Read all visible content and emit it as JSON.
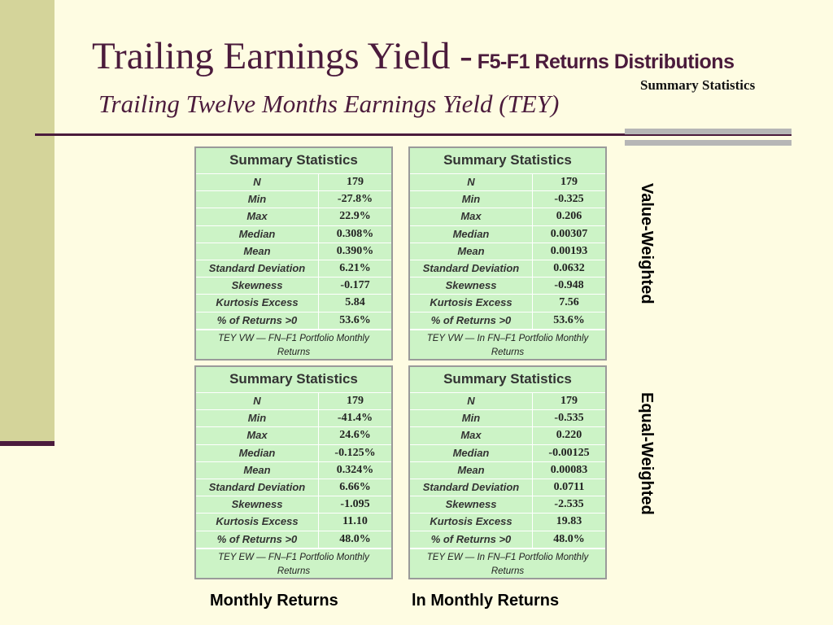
{
  "header": {
    "title_main": "Trailing Earnings Yield -",
    "title_sub": "F5-F1 Returns Distributions",
    "small_caption": "Summary Statistics",
    "subtitle": "Trailing Twelve Months Earnings Yield (TEY)"
  },
  "colors": {
    "background": "#fefce2",
    "accent": "#4b1b3c",
    "table_fill": "#ccf3c6",
    "left_bar": "#d4d49a"
  },
  "panels": {
    "vw_monthly": {
      "heading": "Summary Statistics",
      "rows": [
        {
          "label": "N",
          "value": "179"
        },
        {
          "label": "Min",
          "value": "-27.8%"
        },
        {
          "label": "Max",
          "value": "22.9%"
        },
        {
          "label": "Median",
          "value": "0.308%"
        },
        {
          "label": "Mean",
          "value": "0.390%"
        },
        {
          "label": "Standard Deviation",
          "value": "6.21%"
        },
        {
          "label": "Skewness",
          "value": "-0.177"
        },
        {
          "label": "Kurtosis Excess",
          "value": "5.84"
        },
        {
          "label": "% of Returns >0",
          "value": "53.6%"
        }
      ],
      "footer": "TEY VW — FN–F1 Portfolio Monthly Returns"
    },
    "vw_ln": {
      "heading": "Summary Statistics",
      "rows": [
        {
          "label": "N",
          "value": "179"
        },
        {
          "label": "Min",
          "value": "-0.325"
        },
        {
          "label": "Max",
          "value": "0.206"
        },
        {
          "label": "Median",
          "value": "0.00307"
        },
        {
          "label": "Mean",
          "value": "0.00193"
        },
        {
          "label": "Standard Deviation",
          "value": "0.0632"
        },
        {
          "label": "Skewness",
          "value": "-0.948"
        },
        {
          "label": "Kurtosis Excess",
          "value": "7.56"
        },
        {
          "label": "% of Returns >0",
          "value": "53.6%"
        }
      ],
      "footer": "TEY VW — In FN–F1 Portfolio Monthly Returns"
    },
    "ew_monthly": {
      "heading": "Summary Statistics",
      "rows": [
        {
          "label": "N",
          "value": "179"
        },
        {
          "label": "Min",
          "value": "-41.4%"
        },
        {
          "label": "Max",
          "value": "24.6%"
        },
        {
          "label": "Median",
          "value": "-0.125%"
        },
        {
          "label": "Mean",
          "value": "0.324%"
        },
        {
          "label": "Standard Deviation",
          "value": "6.66%"
        },
        {
          "label": "Skewness",
          "value": "-1.095"
        },
        {
          "label": "Kurtosis Excess",
          "value": "11.10"
        },
        {
          "label": "% of Returns >0",
          "value": "48.0%"
        }
      ],
      "footer": "TEY EW — FN–F1 Portfolio Monthly Returns"
    },
    "ew_ln": {
      "heading": "Summary Statistics",
      "rows": [
        {
          "label": "N",
          "value": "179"
        },
        {
          "label": "Min",
          "value": "-0.535"
        },
        {
          "label": "Max",
          "value": "0.220"
        },
        {
          "label": "Median",
          "value": "-0.00125"
        },
        {
          "label": "Mean",
          "value": "0.00083"
        },
        {
          "label": "Standard Deviation",
          "value": "0.0711"
        },
        {
          "label": "Skewness",
          "value": "-2.535"
        },
        {
          "label": "Kurtosis Excess",
          "value": "19.83"
        },
        {
          "label": "% of Returns >0",
          "value": "48.0%"
        }
      ],
      "footer": "TEY EW — In FN–F1 Portfolio Monthly Returns"
    }
  },
  "labels": {
    "value_weighted": "Value-Weighted",
    "equal_weighted": "Equal-Weighted",
    "monthly_returns": "Monthly Returns",
    "ln_monthly_returns": "ln Monthly Returns"
  }
}
